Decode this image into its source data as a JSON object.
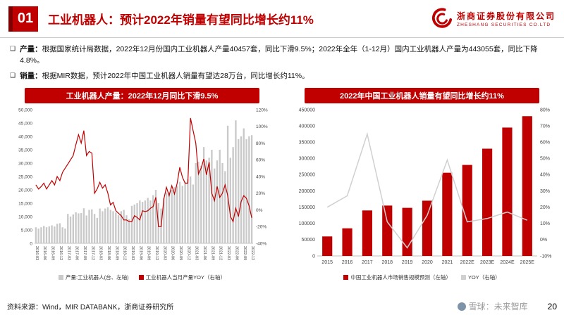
{
  "page": {
    "badge": "01",
    "title": "工业机器人：预计2022年销量有望同比增长约11%",
    "bullet_marker": "❑",
    "source": "资料来源：Wind，MIR DATABANK，浙商证券研究所",
    "watermark": "雪球：未来智库",
    "page_number": "20"
  },
  "logo": {
    "cn": "浙商证券股份有限公司",
    "en": "ZHESHANG SECURITIES CO.LTD"
  },
  "bullets": [
    {
      "label": "产量：",
      "text": "根据国家统计局数据，2022年12月份国内工业机器人产量40457套，同比下滑9.5%；2022年全年（1-12月）国内工业机器人产量为443055套，同比下降4.8%。"
    },
    {
      "label": "销量：",
      "text": "根据MIR数据，预计2022年中国工业机器人销量有望达28万台，同比增长约11%。"
    }
  ],
  "colors": {
    "accent": "#C00000",
    "bar_gray": "#C9C9C9",
    "line_gray": "#D0D0D0"
  },
  "chart_data": [
    {
      "type": "bar",
      "title": "工业机器人产量：2022年12月同比下滑9.5%",
      "categories": [
        "2016-03",
        "2016-04",
        "2016-05",
        "2016-06",
        "2016-07",
        "2016-08",
        "2016-09",
        "2016-10",
        "2016-11",
        "2016-12",
        "2017-01",
        "2017-02",
        "2017-03",
        "2017-04",
        "2017-05",
        "2017-06",
        "2017-07",
        "2017-08",
        "2017-09",
        "2017-10",
        "2017-11",
        "2017-12",
        "2018-01",
        "2018-02",
        "2018-03",
        "2018-04",
        "2018-05",
        "2018-06",
        "2018-07",
        "2018-08",
        "2018-09",
        "2018-10",
        "2018-11",
        "2018-12",
        "2019-01",
        "2019-02",
        "2019-03",
        "2019-04",
        "2019-05",
        "2019-06",
        "2019-07",
        "2019-08",
        "2019-09",
        "2019-10",
        "2019-11",
        "2019-12",
        "2020-01",
        "2020-02",
        "2020-03",
        "2020-04",
        "2020-05",
        "2020-06",
        "2020-07",
        "2020-08",
        "2020-09",
        "2020-10",
        "2020-11",
        "2020-12",
        "2021-01",
        "2021-02",
        "2021-03",
        "2021-04",
        "2021-05",
        "2021-06",
        "2021-07",
        "2021-08",
        "2021-09",
        "2021-10",
        "2021-11",
        "2021-12",
        "2022-01",
        "2022-02",
        "2022-03",
        "2022-04",
        "2022-05",
        "2022-06",
        "2022-07",
        "2022-08",
        "2022-09",
        "2022-10",
        "2022-11",
        "2022-12"
      ],
      "series": [
        {
          "name": "产量:工业机器人(台、左轴)",
          "type": "bar",
          "axis": "left",
          "color": "#C9C9C9",
          "values": [
            6000,
            5500,
            6000,
            6500,
            6000,
            6300,
            6700,
            6300,
            7300,
            7500,
            6000,
            5500,
            11000,
            10000,
            10800,
            11600,
            11200,
            11300,
            13100,
            10400,
            12500,
            12700,
            11000,
            9500,
            13000,
            12000,
            13000,
            13500,
            12500,
            12000,
            11500,
            10500,
            12000,
            12500,
            10500,
            9000,
            14000,
            14500,
            15000,
            16000,
            15500,
            16000,
            17000,
            16000,
            18000,
            20000,
            15000,
            13000,
            17000,
            19000,
            19000,
            20000,
            21000,
            21500,
            23000,
            21500,
            23000,
            24000,
            25000,
            22000,
            30000,
            30500,
            29000,
            36000,
            31000,
            32000,
            35000,
            28000,
            31000,
            35000,
            30000,
            27000,
            44000,
            32000,
            36000,
            46000,
            39000,
            40000,
            43000,
            39000,
            40000,
            40457
          ]
        },
        {
          "name": "工业机器人当月产量YOY（右轴）",
          "type": "line",
          "axis": "right",
          "color": "#C00000",
          "values": [
            30,
            25,
            28,
            32,
            25,
            30,
            35,
            30,
            40,
            35,
            45,
            50,
            55,
            60,
            65,
            78,
            90,
            80,
            95,
            65,
            70,
            68,
            20,
            25,
            33,
            26,
            30,
            20,
            6,
            9,
            -1,
            -4,
            -7,
            -12,
            -12,
            -14,
            -14,
            -7,
            -9,
            -12,
            -1,
            -2,
            -1,
            2,
            4,
            15,
            -20,
            -20,
            13,
            27,
            17,
            29,
            19,
            32,
            51,
            39,
            32,
            32,
            110,
            95,
            80,
            43,
            50,
            61,
            42,
            57,
            20,
            11,
            28,
            15,
            20,
            30,
            17,
            -8,
            -14,
            2,
            -8,
            10,
            17,
            14,
            5,
            -9.5
          ]
        }
      ],
      "left_axis": {
        "min": 0,
        "max": 50000,
        "step": 5000,
        "format": "comma"
      },
      "right_axis": {
        "min": -40,
        "max": 120,
        "step": 20,
        "format": "percent"
      }
    },
    {
      "type": "bar",
      "title": "2022年中国工业机器人销量有望同比增长约11%",
      "categories": [
        "2015",
        "2016",
        "2017",
        "2018",
        "2019",
        "2020",
        "2021",
        "2022E",
        "2023E",
        "2024E",
        "2025E"
      ],
      "series": [
        {
          "name": "中国工业机器人市场销售规模预测（左轴）",
          "type": "bar",
          "axis": "left",
          "color": "#C00000",
          "values": [
            60000,
            85000,
            140000,
            155000,
            148000,
            170000,
            256000,
            280000,
            330000,
            395000,
            430000
          ]
        },
        {
          "name": "YOY（右轴）",
          "type": "line",
          "axis": "right",
          "color": "#D0D0D0",
          "values": [
            20,
            27,
            65,
            11,
            -5,
            15,
            49,
            11,
            13,
            17,
            12
          ]
        }
      ],
      "left_axis": {
        "min": 0,
        "max": 450000,
        "step": 50000,
        "format": "plain"
      },
      "right_axis": {
        "min": -10,
        "max": 80,
        "step": 10,
        "format": "percent"
      }
    }
  ]
}
